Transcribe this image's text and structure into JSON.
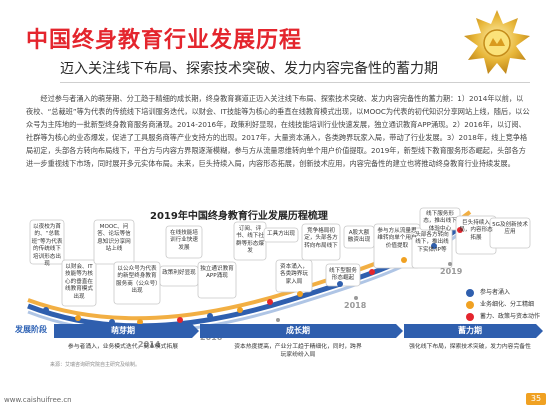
{
  "title": "中国终身教育行业发展历程",
  "subtitle": "迈入关注线下布局、探索技术突破、发力内容完备性的蓄力期",
  "paragraph": "经过参与者涌入的萌芽期、分工趋于精细的成长期，终身教育赛道正迈入关注线下布局、探索技术突破、发力内容完备性的蓄力期：1）2014年以前，以夜校、“总裁班”等为代表的传统线下培训服务迭代，以财会、IT技能等为核心的垂直在线教育模式出现，以MOOC为代表的初代知识分享网站上线，随后，以公众号为主阵地的一批新型终身教育服务商涌现。2014-2016年，政策利好显现，在线技能培训行业快速发展，独立通识教育APP涌现。2）2016年，以订阅、社群等为核心的业态爆发，促进了工具服务商等产业支持方的出现。2017年，大量资本涌入，各类跨界玩家入局，带动了行业发展。3）2018年，线上竞争格局初定，头部各方转向布局线下，平台方与内容方界限逐渐模糊，参与方从流量思维转向单个用户价值提取。2019年，新型线下教育服务形态崛起，头部各方进一步重视线下市场，同时展开多元实体布局。未来，巨头持续入局，内容形态拓展，创新技术应用，内容完备性的建立也将推动终身教育行业持续发展。",
  "chart_title": "2019年中国终身教育行业发展历程梳理",
  "notes": [
    "以夜校为首的、“总裁班”等为代表的传统线下培训形态出现",
    "以财会、IT技能等为核心的垂直在线教育模式出现",
    "MOOC、问答、论坛等信息知识分享网站上线",
    "以公众号为代表的新型终身教育服务商（公众号）出现",
    "政策利好显现",
    "在线技能培训行业快速发展",
    "独立通识教育APP涌现",
    "订阅、评书、线下社群等形态爆发",
    "工具方出现",
    "资本涌入，各类跨界玩家入局",
    "竞争格局初定，头部各方转向布局线下",
    "A股大额融资出现",
    "线下型服务形态崛起",
    "参与方从流量思维转向单个用户价值提取",
    "头部各方转向线下，推出线下实体/IP等",
    "线下服务形态，推出线下体验中心",
    "巨头持续入局，内容形态拓展",
    "5G及创新技术应用"
  ],
  "years": [
    "2014",
    "2016",
    "2017",
    "2018",
    "2019"
  ],
  "legend": [
    {
      "label": "参与者涌入",
      "color": "#2f5fae"
    },
    {
      "label": "业务细化、分工精细",
      "color": "#f0a122"
    },
    {
      "label": "蓄力、政策与资本动作",
      "color": "#e4252d"
    }
  ],
  "stage_row_label": "发展阶段",
  "stages": [
    {
      "name": "萌芽期",
      "desc": "参与者涌入，业务模式迭代，商业模式拓展"
    },
    {
      "name": "成长期",
      "desc": "资本热度提高，产业分工趋于精细化，同时，跨界玩家纷纷入局"
    },
    {
      "name": "蓄力期",
      "desc": "强化线下布局，探索技术突破，发力内容完备性"
    }
  ],
  "source": "来源：艾瑞咨询研究院自主研究及绘制。",
  "footer_url": "www.caishuifree.cn",
  "page_number": "35"
}
